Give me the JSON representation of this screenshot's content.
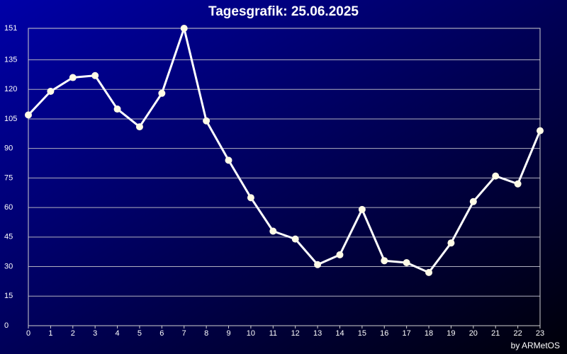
{
  "chart_data": {
    "type": "line",
    "title": "Tagesgrafik: 25.06.2025",
    "credit": "by ARMetOS",
    "x": [
      0,
      1,
      2,
      3,
      4,
      5,
      6,
      7,
      8,
      9,
      10,
      11,
      12,
      13,
      14,
      15,
      16,
      17,
      18,
      19,
      20,
      21,
      22,
      23
    ],
    "series": [
      {
        "color": "#ffffff",
        "marker_color": "#fffbe6",
        "values": [
          107,
          119,
          126,
          127,
          110,
          101,
          118,
          151,
          104,
          84,
          65,
          48,
          44,
          31,
          36,
          59,
          33,
          32,
          27,
          42,
          63,
          76,
          72,
          99
        ]
      }
    ],
    "xlim": [
      0,
      23
    ],
    "xticks": [
      0,
      1,
      2,
      3,
      4,
      5,
      6,
      7,
      8,
      9,
      10,
      11,
      12,
      13,
      14,
      15,
      16,
      17,
      18,
      19,
      20,
      21,
      22,
      23
    ],
    "ylim": [
      0,
      151
    ],
    "yticks": [
      0,
      15,
      30,
      45,
      60,
      75,
      90,
      105,
      120,
      135,
      151
    ],
    "grid": true
  }
}
